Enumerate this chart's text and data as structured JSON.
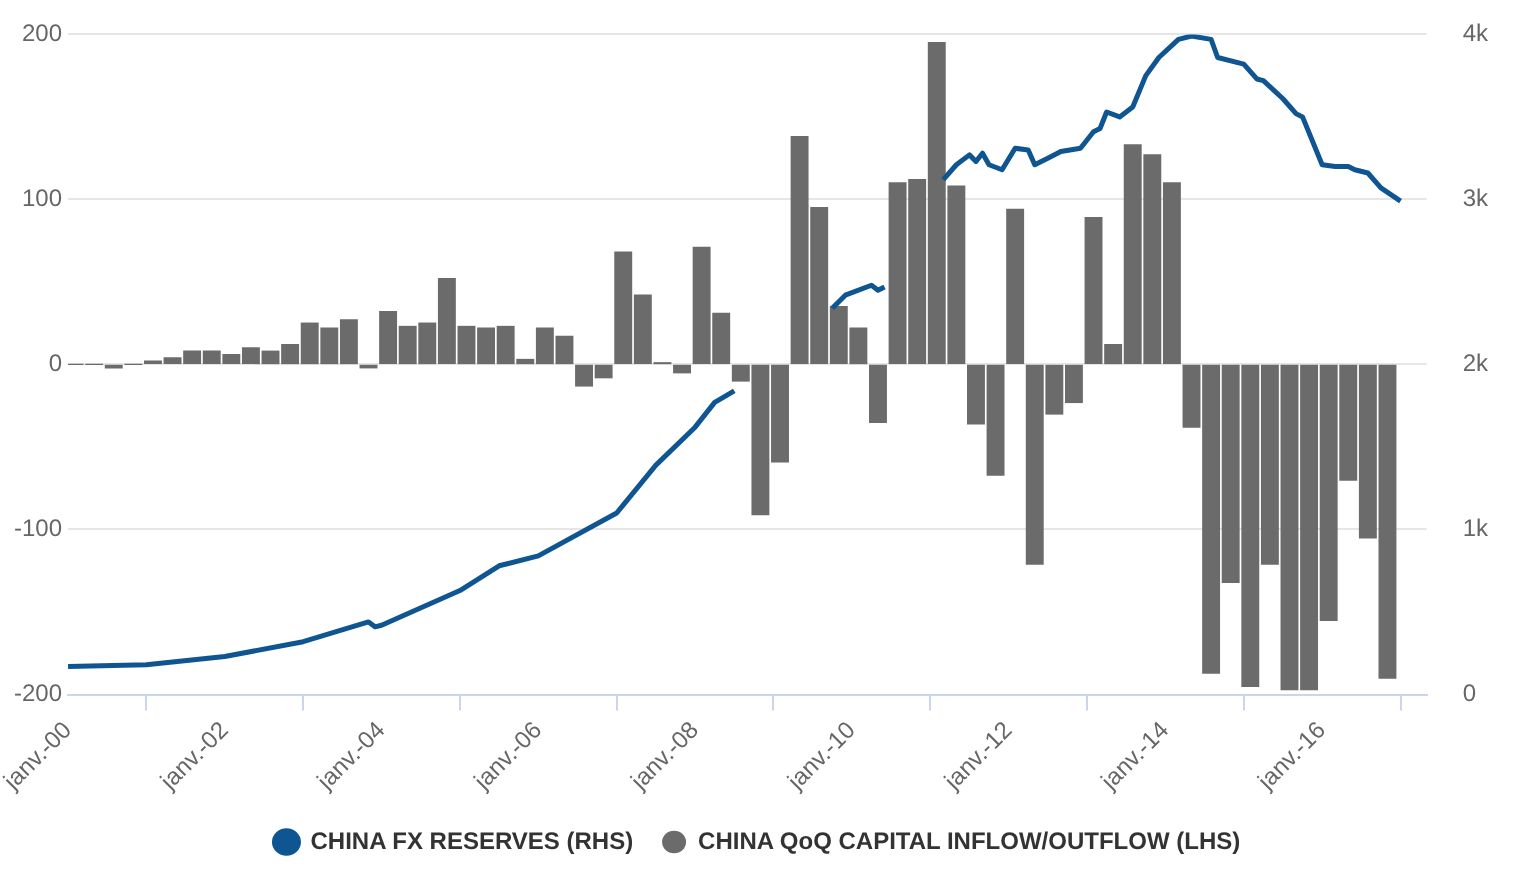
{
  "chart_data": {
    "type": "bar",
    "legend": "bottom",
    "grid": "y",
    "marker": "none",
    "xlim": [
      "2000-01",
      "2017-05"
    ],
    "xticks": [
      {
        "value": "2000-01",
        "label": "janv.-00"
      },
      {
        "value": "2002-01",
        "label": "janv.-02"
      },
      {
        "value": "2004-01",
        "label": "janv.-04"
      },
      {
        "value": "2006-01",
        "label": "janv.-06"
      },
      {
        "value": "2008-01",
        "label": "janv.-08"
      },
      {
        "value": "2010-01",
        "label": "janv.-10"
      },
      {
        "value": "2012-01",
        "label": "janv.-12"
      },
      {
        "value": "2014-01",
        "label": "janv.-14"
      },
      {
        "value": "2016-01",
        "label": "janv.-16"
      }
    ],
    "ylim": [
      -200,
      200
    ],
    "yticks": [
      -200,
      -100,
      0,
      100,
      200
    ],
    "y2lim": [
      0,
      4000
    ],
    "y2ticks": [
      {
        "value": 0,
        "label": "0"
      },
      {
        "value": 1000,
        "label": "1k"
      },
      {
        "value": 2000,
        "label": "2k"
      },
      {
        "value": 3000,
        "label": "3k"
      },
      {
        "value": 4000,
        "label": "4k"
      }
    ],
    "series": [
      {
        "name": "CHINA FX RESERVES (RHS)",
        "type": "line",
        "axis": "y2",
        "color": "#0f5592",
        "x": [
          "2000-01",
          "2001-01",
          "2002-01",
          "2003-01",
          "2003-11",
          "2003-12",
          "2004-01",
          "2005-01",
          "2005-07",
          "2006-01",
          "2007-01",
          "2007-07",
          "2008-01",
          "2008-04",
          "2008-07",
          "2009-01",
          "2009-10",
          "2009-12",
          "2010-04",
          "2010-05",
          "2010-06",
          "2010-10",
          "2011-03",
          "2011-05",
          "2011-07",
          "2011-08",
          "2011-09",
          "2011-10",
          "2011-12",
          "2012-02",
          "2012-04",
          "2012-05",
          "2012-07",
          "2012-09",
          "2012-12",
          "2013-02",
          "2013-03",
          "2013-04",
          "2013-06",
          "2013-08",
          "2013-10",
          "2013-12",
          "2014-03",
          "2014-05",
          "2014-08",
          "2014-09",
          "2015-01",
          "2015-03",
          "2015-04",
          "2015-07",
          "2015-09",
          "2015-10",
          "2016-01",
          "2016-03",
          "2016-05",
          "2016-06",
          "2016-08",
          "2016-10",
          "2017-01"
        ],
        "values": [
          170,
          180,
          230,
          320,
          440,
          410,
          420,
          630,
          780,
          840,
          1100,
          1390,
          1620,
          1770,
          1840,
          null,
          2340,
          2420,
          2480,
          2450,
          2470,
          null,
          3120,
          3210,
          3270,
          3230,
          3280,
          3210,
          3180,
          3310,
          3300,
          3210,
          3250,
          3290,
          3310,
          3410,
          3430,
          3530,
          3500,
          3560,
          3750,
          3860,
          3970,
          3990,
          3970,
          3860,
          3820,
          3730,
          3720,
          3610,
          3520,
          3500,
          3210,
          3200,
          3200,
          3180,
          3160,
          3070,
          2990
        ]
      },
      {
        "name": "CHINA QoQ CAPITAL INFLOW/OUTFLOW (LHS)",
        "color": "#6b6b6b",
        "x": [
          "2000-02",
          "2000-05",
          "2000-08",
          "2000-11",
          "2001-02",
          "2001-05",
          "2001-08",
          "2001-11",
          "2002-02",
          "2002-05",
          "2002-08",
          "2002-11",
          "2003-02",
          "2003-05",
          "2003-08",
          "2003-11",
          "2004-02",
          "2004-05",
          "2004-08",
          "2004-11",
          "2005-02",
          "2005-05",
          "2005-08",
          "2005-11",
          "2006-02",
          "2006-05",
          "2006-08",
          "2006-11",
          "2007-02",
          "2007-05",
          "2007-08",
          "2007-11",
          "2008-02",
          "2008-05",
          "2008-08",
          "2008-11",
          "2009-02",
          "2009-05",
          "2009-08",
          "2009-11",
          "2010-02",
          "2010-05",
          "2010-08",
          "2010-11",
          "2011-02",
          "2011-05",
          "2011-08",
          "2011-11",
          "2012-02",
          "2012-05",
          "2012-08",
          "2012-11",
          "2013-02",
          "2013-05",
          "2013-08",
          "2013-11",
          "2014-02",
          "2014-05",
          "2014-08",
          "2014-11",
          "2015-02",
          "2015-05",
          "2015-08",
          "2015-11",
          "2016-02",
          "2016-05",
          "2016-08",
          "2016-11"
        ],
        "values": [
          0,
          0,
          -2,
          0,
          2,
          4,
          8,
          8,
          6,
          10,
          8,
          12,
          25,
          22,
          27,
          -2,
          32,
          23,
          25,
          52,
          23,
          22,
          23,
          3,
          22,
          17,
          -13,
          -8,
          68,
          42,
          1,
          -5,
          71,
          31,
          -10,
          -91,
          -59,
          138,
          95,
          35,
          22,
          -35,
          110,
          112,
          195,
          108,
          -36,
          -67,
          94,
          -121,
          -30,
          -23,
          89,
          12,
          133,
          127,
          110,
          -38,
          -187,
          -132,
          -195,
          -121,
          -197,
          -197,
          -155,
          -70,
          -105,
          -190
        ]
      }
    ]
  }
}
